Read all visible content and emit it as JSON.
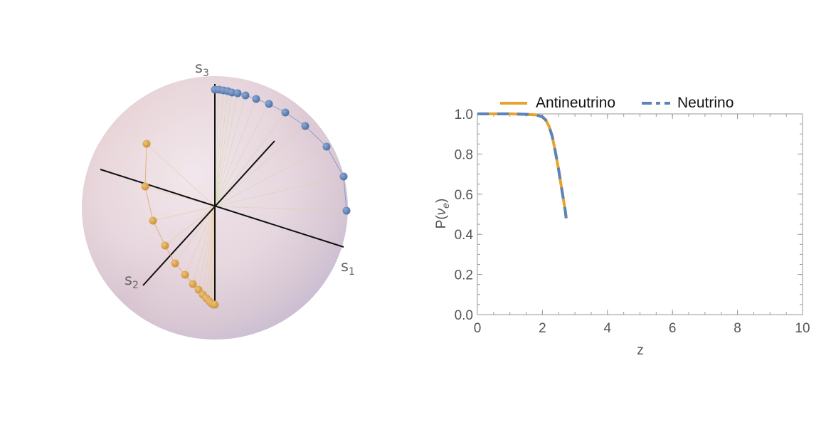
{
  "bloch": {
    "axis_labels": {
      "s1": {
        "base": "s",
        "sub": "1"
      },
      "s2": {
        "base": "s",
        "sub": "2"
      },
      "s3": {
        "base": "s",
        "sub": "3"
      }
    },
    "neutrino_color": "#5B7FB5",
    "antineutrino_color": "#D9A14A"
  },
  "chart_data": {
    "type": "line",
    "title": "",
    "xlabel": "z",
    "ylabel_parts": {
      "prefix": "P(",
      "nu": "ν",
      "sub": "e",
      "suffix": ")"
    },
    "xlim": [
      0,
      10
    ],
    "ylim": [
      0,
      1
    ],
    "x_ticks": [
      "0",
      "2",
      "4",
      "6",
      "8",
      "10"
    ],
    "y_ticks": [
      "0.0",
      "0.2",
      "0.4",
      "0.6",
      "0.8",
      "1.0"
    ],
    "legend_position": "top",
    "series": [
      {
        "name": "Antineutrino",
        "color": "#E8A32E",
        "style": "solid",
        "x": [
          0,
          0.5,
          1.0,
          1.5,
          1.8,
          2.0,
          2.1,
          2.2,
          2.3,
          2.4,
          2.5,
          2.6,
          2.7,
          2.73
        ],
        "y": [
          1.0,
          1.0,
          1.0,
          0.998,
          0.995,
          0.985,
          0.97,
          0.94,
          0.89,
          0.81,
          0.72,
          0.62,
          0.52,
          0.48
        ]
      },
      {
        "name": "Neutrino",
        "color": "#5B84B8",
        "style": "dashed",
        "x": [
          0,
          0.5,
          1.0,
          1.5,
          1.8,
          2.0,
          2.1,
          2.2,
          2.3,
          2.4,
          2.5,
          2.6,
          2.7,
          2.73
        ],
        "y": [
          1.0,
          1.0,
          1.0,
          0.998,
          0.995,
          0.985,
          0.97,
          0.94,
          0.89,
          0.81,
          0.72,
          0.62,
          0.52,
          0.48
        ]
      }
    ]
  }
}
